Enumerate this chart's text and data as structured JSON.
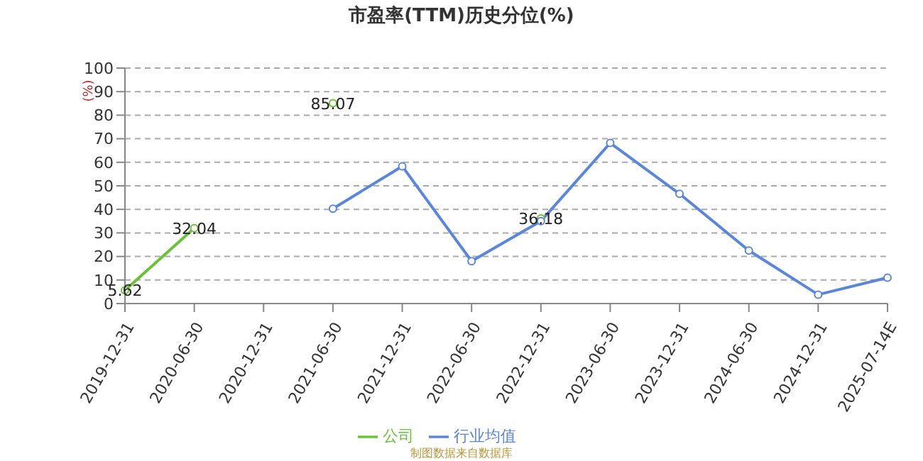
{
  "chart_data": {
    "type": "line",
    "title": "市盈率(TTM)历史分位(%)",
    "ylabel": "(%)",
    "categories": [
      "2019-12-31",
      "2020-06-30",
      "2020-12-31",
      "2021-06-30",
      "2021-12-31",
      "2022-06-30",
      "2022-12-31",
      "2023-06-30",
      "2023-12-31",
      "2024-06-30",
      "2024-12-31",
      "2025-07-14E"
    ],
    "series": [
      {
        "name": "公司",
        "color": "#6cc13a",
        "values": [
          5.62,
          32.04,
          null,
          85.07,
          null,
          null,
          36.18,
          null,
          null,
          null,
          null,
          null
        ],
        "value_labels": [
          "5.62",
          "32.04",
          null,
          "85.07",
          null,
          null,
          "36.18",
          null,
          null,
          null,
          null,
          null
        ]
      },
      {
        "name": "行业均值",
        "color": "#5b86d9",
        "values": [
          null,
          null,
          null,
          40.3,
          58.3,
          18,
          35,
          68.2,
          46.6,
          22.5,
          3.8,
          11
        ]
      }
    ],
    "ylim": [
      0,
      100
    ],
    "yticks": [
      0,
      10,
      20,
      30,
      40,
      50,
      60,
      70,
      80,
      90,
      100
    ],
    "grid": "y",
    "legend": "bottom",
    "marker": "circle",
    "line_style": "solid",
    "annotations": [
      "制图数据来自数据库"
    ]
  }
}
